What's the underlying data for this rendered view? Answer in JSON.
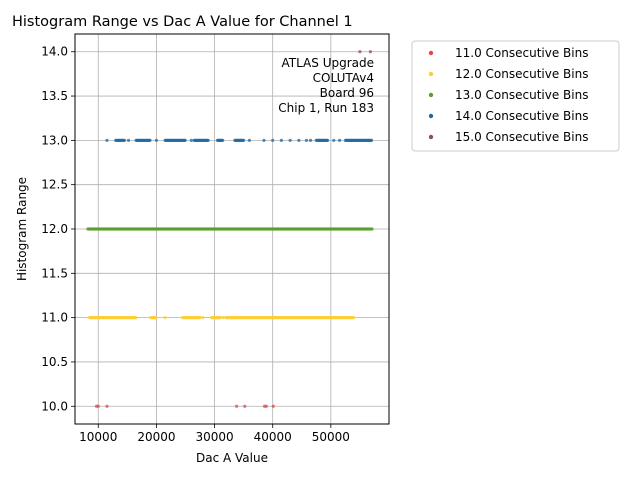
{
  "chart_data": {
    "type": "scatter",
    "title": "Histogram Range vs Dac A Value for Channel 1",
    "xlabel": "Dac A Value",
    "ylabel": "Histogram Range",
    "xlim": [
      6000,
      60000
    ],
    "ylim": [
      9.8,
      14.2
    ],
    "xticks": [
      10000,
      20000,
      30000,
      40000,
      50000
    ],
    "yticks": [
      10.0,
      10.5,
      11.0,
      11.5,
      12.0,
      12.5,
      13.0,
      13.5,
      14.0
    ],
    "grid": true,
    "legend_position": "outside-right",
    "annotation": [
      "ATLAS Upgrade",
      "COLUTAv4",
      "Board 96",
      "Chip 1, Run 183"
    ],
    "series": [
      {
        "name": "11.0 Consecutive Bins",
        "color": "#e84545",
        "y": 10.0,
        "x": [
          9700,
          10000,
          11500,
          33800,
          35200,
          38600,
          38900,
          40100
        ]
      },
      {
        "name": "12.0 Consecutive Bins",
        "color": "#ffcc33",
        "y": 11.0,
        "ranges": [
          [
            8500,
            16500
          ],
          [
            19000,
            20000
          ],
          [
            24500,
            27500
          ],
          [
            29500,
            31000
          ],
          [
            32000,
            54000
          ]
        ],
        "x": [
          21500,
          28000,
          31500
        ]
      },
      {
        "name": "13.0 Consecutive Bins",
        "color": "#5a9e2f",
        "y": 12.0,
        "ranges": [
          [
            8200,
            57200
          ]
        ],
        "x": []
      },
      {
        "name": "14.0 Consecutive Bins",
        "color": "#1f6aa5",
        "y": 13.0,
        "ranges": [
          [
            13000,
            14500
          ],
          [
            16500,
            19000
          ],
          [
            21500,
            25000
          ],
          [
            26500,
            29000
          ],
          [
            30500,
            31500
          ],
          [
            33500,
            35000
          ],
          [
            47500,
            49500
          ],
          [
            52500,
            57000
          ]
        ],
        "x": [
          11500,
          15200,
          20000,
          26000,
          36000,
          38500,
          40000,
          41500,
          43000,
          44500,
          45800,
          46500,
          50500,
          51500
        ]
      },
      {
        "name": "15.0 Consecutive Bins",
        "color": "#8b4f5a",
        "y": 14.0,
        "x": [
          55000,
          56800
        ]
      }
    ]
  }
}
